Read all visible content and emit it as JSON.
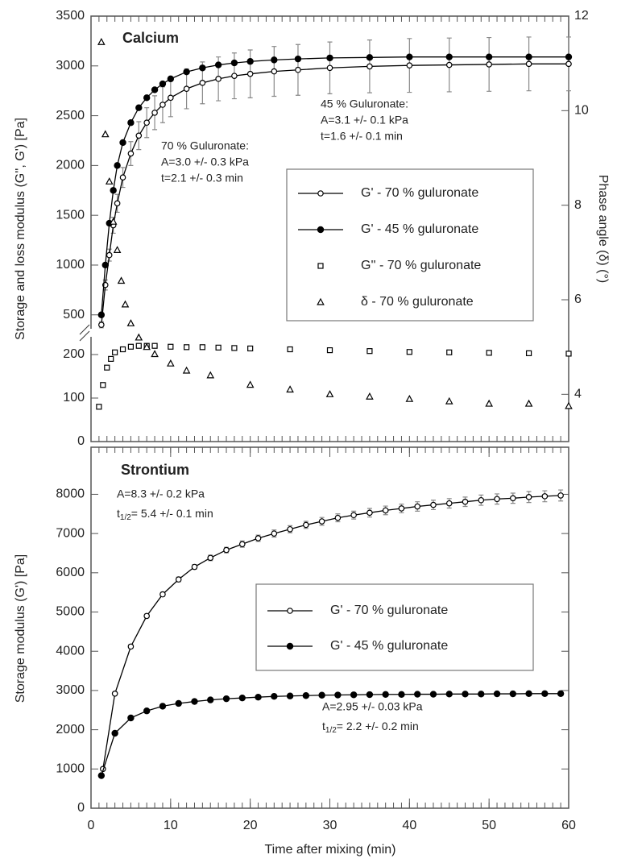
{
  "chart_data": [
    {
      "type": "line",
      "title": "Calcium",
      "xlim": [
        0,
        60
      ],
      "xminor_step": 1,
      "y_segments": [
        {
          "ylim": [
            0,
            250
          ],
          "yticks": [
            0,
            100,
            200
          ]
        },
        {
          "ylim": [
            320,
            3500
          ],
          "yticks": [
            500,
            1000,
            1500,
            2000,
            2500,
            3000,
            3500
          ]
        }
      ],
      "y2lim": [
        3,
        12
      ],
      "y2ticks": [
        4,
        6,
        8,
        10,
        12
      ],
      "ylabel": "Storage and loss modulus (G'', G') [Pa]",
      "y2label": "Phase angle (δ) (°)",
      "error_color": "#888888",
      "annotations": [
        {
          "lines": [
            "45 % Guluronate:",
            "A=3.1 +/- 0.1 kPa",
            "t=1.6 +/- 0.1 min"
          ]
        },
        {
          "lines": [
            "70 % Guluronate:",
            "A=3.0 +/- 0.3 kPa",
            "t=2.1 +/- 0.3 min"
          ]
        }
      ],
      "series": [
        {
          "name": "G' - 70 % guluronate",
          "color": "#000000",
          "marker": "open-circle",
          "line": true,
          "x": [
            1.3,
            1.8,
            2.3,
            2.8,
            3.3,
            4,
            5,
            6,
            7,
            8,
            9,
            10,
            12,
            14,
            16,
            18,
            20,
            23,
            26,
            30,
            35,
            40,
            45,
            50,
            55,
            60
          ],
          "values": [
            400,
            800,
            1100,
            1400,
            1620,
            1880,
            2120,
            2300,
            2430,
            2530,
            2610,
            2680,
            2770,
            2830,
            2870,
            2900,
            2920,
            2945,
            2960,
            2980,
            2995,
            3005,
            3010,
            3015,
            3020,
            3020
          ],
          "errors": [
            30,
            50,
            60,
            80,
            90,
            100,
            120,
            140,
            150,
            170,
            180,
            190,
            200,
            210,
            220,
            230,
            240,
            250,
            255,
            260,
            265,
            270,
            270,
            270,
            270,
            270
          ]
        },
        {
          "name": "G' - 45 % guluronate",
          "color": "#000000",
          "marker": "filled-circle",
          "line": true,
          "x": [
            1.3,
            1.8,
            2.3,
            2.8,
            3.3,
            4,
            5,
            6,
            7,
            8,
            9,
            10,
            12,
            14,
            16,
            18,
            20,
            23,
            26,
            30,
            35,
            40,
            45,
            50,
            55,
            60
          ],
          "values": [
            500,
            1000,
            1420,
            1750,
            2000,
            2230,
            2430,
            2580,
            2680,
            2760,
            2820,
            2870,
            2940,
            2980,
            3010,
            3030,
            3045,
            3060,
            3070,
            3080,
            3085,
            3090,
            3090,
            3090,
            3090,
            3090
          ]
        },
        {
          "name": "G'' - 70 % guluronate",
          "color": "#000000",
          "marker": "open-square",
          "line": false,
          "x": [
            1,
            1.5,
            2,
            2.5,
            3,
            4,
            5,
            6,
            7,
            8,
            10,
            12,
            14,
            16,
            18,
            20,
            25,
            30,
            35,
            40,
            45,
            50,
            55,
            60
          ],
          "values": [
            80,
            130,
            170,
            190,
            205,
            212,
            218,
            220,
            220,
            220,
            218,
            217,
            217,
            216,
            215,
            214,
            212,
            210,
            208,
            206,
            205,
            204,
            203,
            202
          ]
        },
        {
          "name": "δ - 70 % guluronate",
          "color": "#000000",
          "marker": "open-triangle",
          "line": false,
          "axis": "y2",
          "x": [
            1.3,
            1.8,
            2.3,
            2.8,
            3.3,
            3.8,
            4.3,
            5,
            6,
            7,
            8,
            10,
            12,
            15,
            20,
            25,
            30,
            35,
            40,
            45,
            50,
            55,
            60
          ],
          "values": [
            11.45,
            9.5,
            8.5,
            7.65,
            7.05,
            6.4,
            5.9,
            5.5,
            5.2,
            5.0,
            4.85,
            4.65,
            4.5,
            4.4,
            4.2,
            4.1,
            4.0,
            3.95,
            3.9,
            3.85,
            3.8,
            3.8,
            3.75
          ]
        }
      ]
    },
    {
      "type": "line",
      "title": "Strontium",
      "xlim": [
        0,
        60
      ],
      "xticks": [
        0,
        10,
        20,
        30,
        40,
        50,
        60
      ],
      "xminor_step": 1,
      "ylim": [
        0,
        9200
      ],
      "yticks": [
        0,
        1000,
        2000,
        3000,
        4000,
        5000,
        6000,
        7000,
        8000
      ],
      "xlabel": "Time after mixing (min)",
      "ylabel": "Storage modulus (G') [Pa]",
      "error_color": "#888888",
      "annotations": [
        {
          "lines": [
            "A=8.3 +/- 0.2 kPa",
            [
              "t",
              "1/2",
              "= 5.4 +/- 0.1 min"
            ]
          ]
        },
        {
          "lines": [
            "A=2.95 +/- 0.03 kPa",
            [
              "t",
              "1/2",
              "= 2.2 +/- 0.2 min"
            ]
          ]
        }
      ],
      "series": [
        {
          "name": "G' - 70 % guluronate",
          "color": "#000000",
          "marker": "open-circle",
          "line": true,
          "x": [
            1.5,
            3,
            5,
            7,
            9,
            11,
            13,
            15,
            17,
            19,
            21,
            23,
            25,
            27,
            29,
            31,
            33,
            35,
            37,
            39,
            41,
            43,
            45,
            47,
            49,
            51,
            53,
            55,
            57,
            59
          ],
          "values": [
            1000,
            2920,
            4120,
            4900,
            5450,
            5830,
            6150,
            6380,
            6580,
            6730,
            6880,
            7000,
            7110,
            7220,
            7310,
            7400,
            7470,
            7530,
            7590,
            7640,
            7690,
            7730,
            7770,
            7810,
            7850,
            7880,
            7900,
            7930,
            7950,
            7970
          ],
          "errors": [
            40,
            40,
            50,
            50,
            50,
            60,
            60,
            70,
            70,
            80,
            80,
            90,
            90,
            90,
            100,
            100,
            100,
            110,
            110,
            110,
            120,
            120,
            120,
            120,
            130,
            130,
            130,
            140,
            140,
            140
          ]
        },
        {
          "name": "G' - 45 % guluronate",
          "color": "#000000",
          "marker": "filled-circle",
          "line": true,
          "x": [
            1.3,
            3,
            5,
            7,
            9,
            11,
            13,
            15,
            17,
            19,
            21,
            23,
            25,
            27,
            29,
            31,
            33,
            35,
            37,
            39,
            41,
            43,
            45,
            47,
            49,
            51,
            53,
            55,
            57,
            59
          ],
          "values": [
            830,
            1910,
            2300,
            2480,
            2600,
            2670,
            2720,
            2760,
            2790,
            2810,
            2830,
            2850,
            2860,
            2870,
            2880,
            2885,
            2890,
            2895,
            2900,
            2900,
            2905,
            2905,
            2910,
            2910,
            2910,
            2915,
            2915,
            2920,
            2920,
            2920
          ],
          "errors": [
            30,
            30,
            30,
            30,
            30,
            30,
            30,
            30,
            30,
            30,
            30,
            30,
            30,
            30,
            30,
            30,
            30,
            30,
            30,
            30,
            30,
            30,
            30,
            30,
            30,
            30,
            30,
            30,
            30,
            30
          ]
        }
      ]
    }
  ]
}
